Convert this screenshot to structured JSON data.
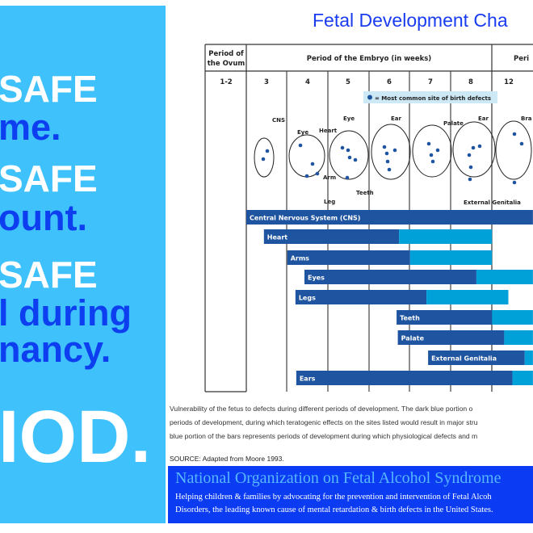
{
  "poster": {
    "lines": [
      "SAFE",
      "me.",
      "SAFE",
      "ount.",
      "SAFE",
      "l during",
      "nancy.",
      "IOD."
    ],
    "colors": {
      "panel": "#3fc1fb",
      "white_text": "#ffffff",
      "blue_text": "#0d3ff0"
    }
  },
  "chart_data": {
    "type": "bar",
    "orientation": "horizontal",
    "title": "Fetal Development Cha",
    "header": {
      "ovum": [
        "Period of",
        "the Ovum"
      ],
      "embryo": "Period of the Embryo (in weeks)",
      "fetal": "Peri"
    },
    "week_labels": [
      "1-2",
      "3",
      "4",
      "5",
      "6",
      "7",
      "8",
      "12"
    ],
    "legend": "= Most common site of birth defects",
    "drawing_labels": [
      "CNS",
      "Eye",
      "Heart",
      "Eye",
      "Ear",
      "Palate",
      "Ear",
      "Bra",
      "Arm",
      "Teeth",
      "Leg",
      "External Genitalia"
    ],
    "series_colors": {
      "major_defects": "#1f55a0",
      "minor_defects": "#00a0d8"
    },
    "bars": [
      {
        "label": "Central Nervous System (CNS)",
        "start": 3.0,
        "major_end": 10.0,
        "end": 10.0
      },
      {
        "label": "Heart",
        "start": 3.43,
        "major_end": 6.73,
        "end": 9.0
      },
      {
        "label": "Arms",
        "start": 4.0,
        "major_end": 7.0,
        "end": 9.0
      },
      {
        "label": "Eyes",
        "start": 4.42,
        "major_end": 8.62,
        "end": 10.0
      },
      {
        "label": "Legs",
        "start": 4.2,
        "major_end": 7.4,
        "end": 9.4
      },
      {
        "label": "Teeth",
        "start": 6.67,
        "major_end": 9.0,
        "end": 10.0
      },
      {
        "label": "Palate",
        "start": 6.7,
        "major_end": 9.3,
        "end": 10.0
      },
      {
        "label": "External Genitalia",
        "start": 7.44,
        "major_end": 9.8,
        "end": 10.0
      },
      {
        "label": "Ears",
        "start": 4.22,
        "major_end": 9.5,
        "end": 10.0
      }
    ]
  },
  "caption": [
    "Vulnerability of the fetus to defects during different periods of development. The dark blue portion o",
    "periods of development, during which teratogenic effects on the sites listed would result in major stru",
    "blue portion of the bars represents periods of development during which physiological defects and m"
  ],
  "source": "SOURCE: Adapted from Moore 1993.",
  "org": {
    "title": "National Organization on Fetal Alcohol Syndrome",
    "line1": "Helping children & families by advocating for the prevention and intervention of Fetal Alcoh",
    "line2": "Disorders, the leading known cause of mental retardation & birth defects in the United States."
  }
}
